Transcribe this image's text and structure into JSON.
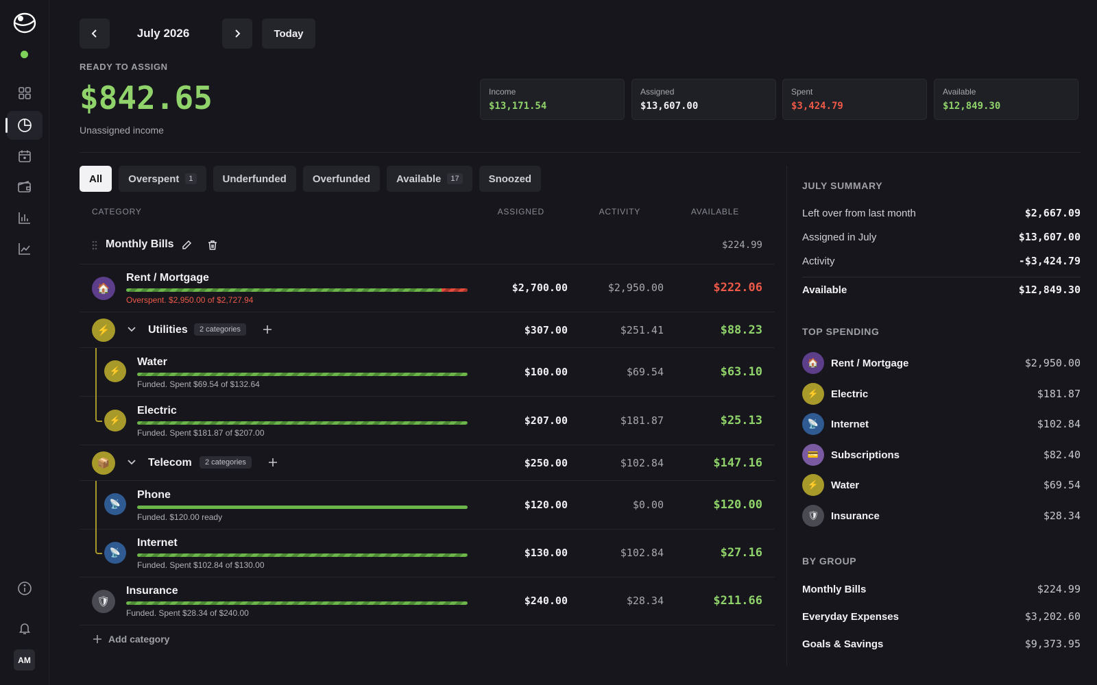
{
  "nav": {
    "month": "July 2026",
    "today_label": "Today",
    "prev_icon": "chevron-left-icon",
    "next_icon": "chevron-right-icon"
  },
  "sidebar": {
    "avatar_initials": "AM",
    "status_color": "#7ed35a"
  },
  "ready_to_assign": {
    "label": "READY TO ASSIGN",
    "amount": "$842.65",
    "subtitle": "Unassigned income"
  },
  "summary_cards": [
    {
      "label": "Income",
      "value": "$13,171.54",
      "color": "#8fd36a"
    },
    {
      "label": "Assigned",
      "value": "$13,607.00",
      "color": "#f2f2f4"
    },
    {
      "label": "Spent",
      "value": "$3,424.79",
      "color": "#ef5a48"
    },
    {
      "label": "Available",
      "value": "$12,849.30",
      "color": "#8fd36a"
    }
  ],
  "filters": [
    {
      "label": "All",
      "badge": null,
      "active": true
    },
    {
      "label": "Overspent",
      "badge": "1"
    },
    {
      "label": "Underfunded",
      "badge": null
    },
    {
      "label": "Overfunded",
      "badge": null
    },
    {
      "label": "Available",
      "badge": "17"
    },
    {
      "label": "Snoozed",
      "badge": null
    }
  ],
  "table": {
    "headers": {
      "category": "CATEGORY",
      "assigned": "ASSIGNED",
      "activity": "ACTIVITY",
      "available": "AVAILABLE"
    },
    "group": {
      "name": "Monthly Bills",
      "available": "$224.99"
    },
    "rows": [
      {
        "name": "Rent / Mortgage",
        "icon": "house-icon",
        "assigned": "$2,700.00",
        "activity": "$2,950.00",
        "available": "$222.06",
        "available_color": "#ef5a48",
        "status": "Overspent. $2,950.00 of $2,727.94",
        "status_color": "#ef5a48"
      },
      {
        "name": "Utilities",
        "icon": "lightning-icon",
        "badge": "2 categories",
        "assigned": "$307.00",
        "activity": "$251.41",
        "available": "$88.23",
        "available_color": "#8fd36a"
      },
      {
        "name": "Water",
        "icon": "lightning-icon",
        "assigned": "$100.00",
        "activity": "$69.54",
        "available": "$63.10",
        "available_color": "#8fd36a",
        "status": "Funded. Spent $69.54 of $132.64"
      },
      {
        "name": "Electric",
        "icon": "lightning-icon",
        "assigned": "$207.00",
        "activity": "$181.87",
        "available": "$25.13",
        "available_color": "#8fd36a",
        "status": "Funded. Spent $181.87 of $207.00"
      },
      {
        "name": "Telecom",
        "icon": "package-icon",
        "badge": "2 categories",
        "assigned": "$250.00",
        "activity": "$102.84",
        "available": "$147.16",
        "available_color": "#8fd36a"
      },
      {
        "name": "Phone",
        "icon": "satellite-icon",
        "assigned": "$120.00",
        "activity": "$0.00",
        "available": "$120.00",
        "available_color": "#8fd36a",
        "status": "Funded. $120.00 ready"
      },
      {
        "name": "Internet",
        "icon": "satellite-icon",
        "assigned": "$130.00",
        "activity": "$102.84",
        "available": "$27.16",
        "available_color": "#8fd36a",
        "status": "Funded. Spent $102.84 of $130.00"
      },
      {
        "name": "Insurance",
        "icon": "shield-icon",
        "assigned": "$240.00",
        "activity": "$28.34",
        "available": "$211.66",
        "available_color": "#8fd36a",
        "status": "Funded. Spent $28.34 of $240.00"
      }
    ],
    "add_category_label": "Add category"
  },
  "right_panel": {
    "summary_title": "JULY SUMMARY",
    "summary": [
      {
        "label": "Left over from last month",
        "value": "$2,667.09"
      },
      {
        "label": "Assigned in July",
        "value": "$13,607.00"
      },
      {
        "label": "Activity",
        "value": "-$3,424.79"
      },
      {
        "label": "Available",
        "value": "$12,849.30"
      }
    ],
    "top_spending_title": "TOP SPENDING",
    "top_spending": [
      {
        "name": "Rent / Mortgage",
        "value": "$2,950.00",
        "icon": "house-icon"
      },
      {
        "name": "Electric",
        "value": "$181.87",
        "icon": "lightning-icon"
      },
      {
        "name": "Internet",
        "value": "$102.84",
        "icon": "satellite-icon"
      },
      {
        "name": "Subscriptions",
        "value": "$82.40",
        "icon": "card-icon"
      },
      {
        "name": "Water",
        "value": "$69.54",
        "icon": "lightning-icon"
      },
      {
        "name": "Insurance",
        "value": "$28.34",
        "icon": "shield-icon"
      }
    ],
    "by_group_title": "BY GROUP",
    "by_group": [
      {
        "label": "Monthly Bills",
        "value": "$224.99"
      },
      {
        "label": "Everyday Expenses",
        "value": "$3,202.60"
      },
      {
        "label": "Goals & Savings",
        "value": "$9,373.95"
      }
    ]
  }
}
